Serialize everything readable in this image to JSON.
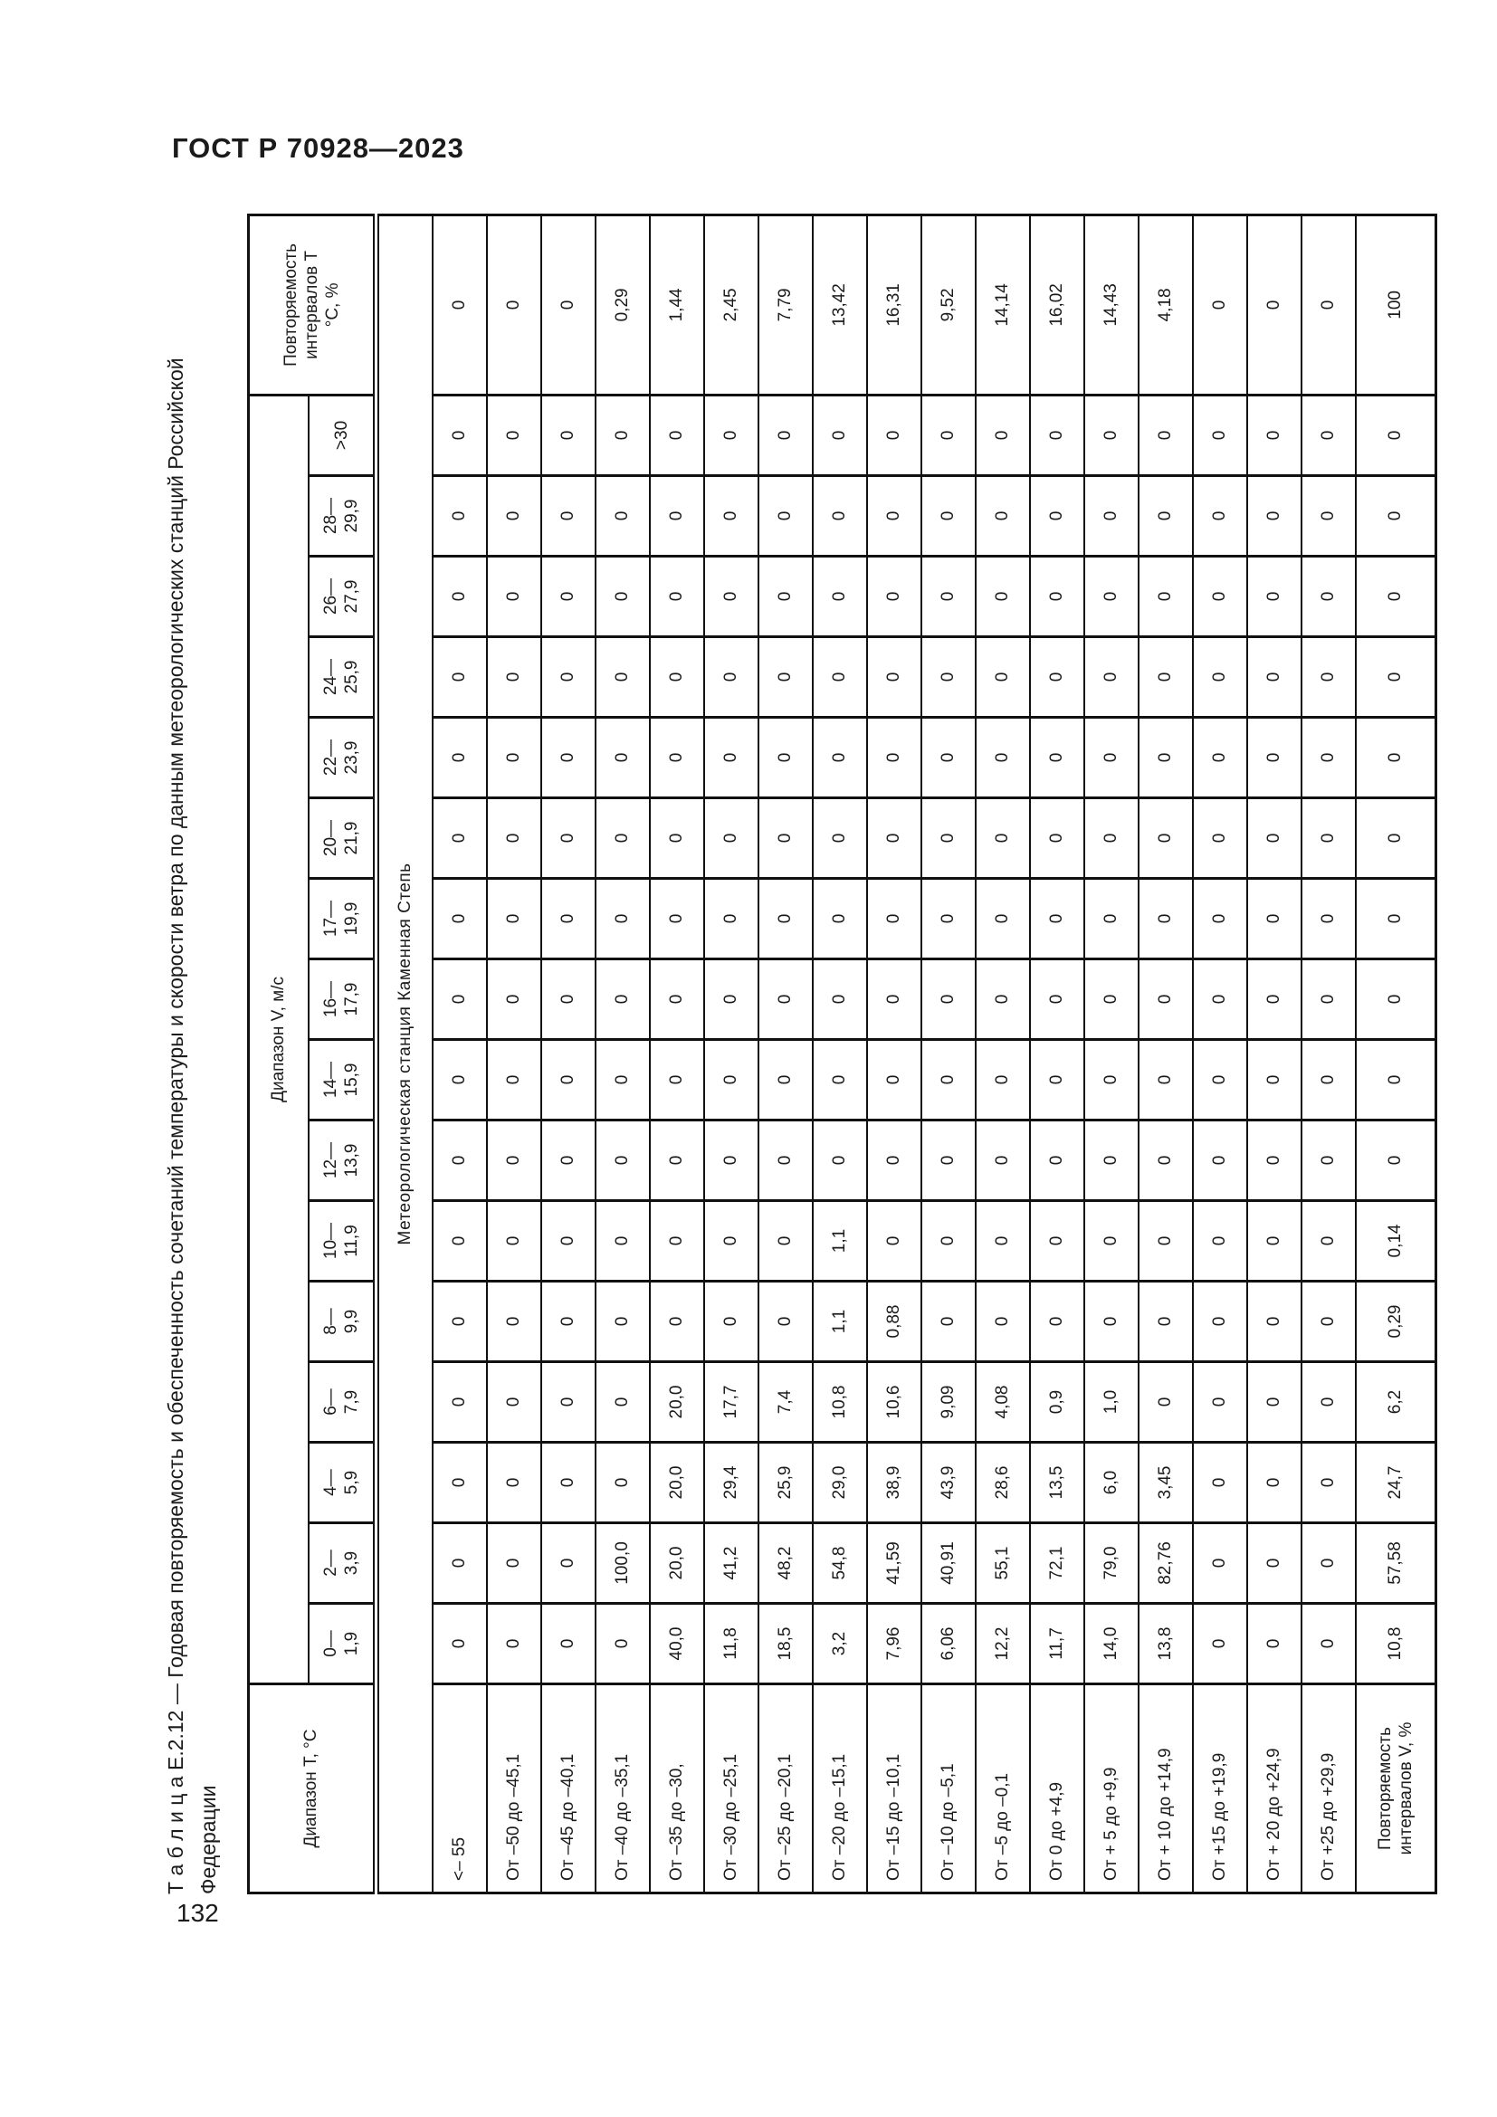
{
  "page": {
    "doc_header": "ГОСТ Р 70928—2023",
    "page_number": "132",
    "caption_line1": "Т а б л и ц а   Е.2.12 — Годовая повторяемость и обеспеченность сочетаний температуры и скорости ветра по данным метеорологических станций Российской",
    "caption_line2": "Федерации"
  },
  "table": {
    "header": {
      "temp_range": "Диапазон T, °С",
      "wind_range": "Диапазон V, м/с",
      "freq_temp": "Повторяемость\nинтервалов T\n°С, %"
    },
    "wind_ranges": [
      "0—\n1,9",
      "2—\n3,9",
      "4—\n5,9",
      "6—\n7,9",
      "8—\n9,9",
      "10—\n11,9",
      "12—\n13,9",
      "14—\n15,9",
      "16—\n17,9",
      "17—\n19,9",
      "20—\n21,9",
      "22—\n23,9",
      "24—\n25,9",
      "26—\n27,9",
      "28—\n29,9",
      ">30"
    ],
    "station": "Метеорологическая станция Каменная Степь",
    "rows": [
      {
        "label": "<– 55",
        "values": [
          "0",
          "0",
          "0",
          "0",
          "0",
          "0",
          "0",
          "0",
          "0",
          "0",
          "0",
          "0",
          "0",
          "0",
          "0",
          "0"
        ],
        "total": "0"
      },
      {
        "label": "От –50 до –45,1",
        "values": [
          "0",
          "0",
          "0",
          "0",
          "0",
          "0",
          "0",
          "0",
          "0",
          "0",
          "0",
          "0",
          "0",
          "0",
          "0",
          "0"
        ],
        "total": "0"
      },
      {
        "label": "От –45 до –40,1",
        "values": [
          "0",
          "0",
          "0",
          "0",
          "0",
          "0",
          "0",
          "0",
          "0",
          "0",
          "0",
          "0",
          "0",
          "0",
          "0",
          "0"
        ],
        "total": "0"
      },
      {
        "label": "От –40 до –35,1",
        "values": [
          "0",
          "100,0",
          "0",
          "0",
          "0",
          "0",
          "0",
          "0",
          "0",
          "0",
          "0",
          "0",
          "0",
          "0",
          "0",
          "0"
        ],
        "total": "0,29"
      },
      {
        "label": "От –35 до –30,",
        "values": [
          "40,0",
          "20,0",
          "20,0",
          "20,0",
          "0",
          "0",
          "0",
          "0",
          "0",
          "0",
          "0",
          "0",
          "0",
          "0",
          "0",
          "0"
        ],
        "total": "1,44"
      },
      {
        "label": "От –30 до –25,1",
        "values": [
          "11,8",
          "41,2",
          "29,4",
          "17,7",
          "0",
          "0",
          "0",
          "0",
          "0",
          "0",
          "0",
          "0",
          "0",
          "0",
          "0",
          "0"
        ],
        "total": "2,45"
      },
      {
        "label": "От –25 до –20,1",
        "values": [
          "18,5",
          "48,2",
          "25,9",
          "7,4",
          "0",
          "0",
          "0",
          "0",
          "0",
          "0",
          "0",
          "0",
          "0",
          "0",
          "0",
          "0"
        ],
        "total": "7,79"
      },
      {
        "label": "От –20 до –15,1",
        "values": [
          "3,2",
          "54,8",
          "29,0",
          "10,8",
          "1,1",
          "1,1",
          "0",
          "0",
          "0",
          "0",
          "0",
          "0",
          "0",
          "0",
          "0",
          "0"
        ],
        "total": "13,42"
      },
      {
        "label": "От –15 до –10,1",
        "values": [
          "7,96",
          "41,59",
          "38,9",
          "10,6",
          "0,88",
          "0",
          "0",
          "0",
          "0",
          "0",
          "0",
          "0",
          "0",
          "0",
          "0",
          "0"
        ],
        "total": "16,31"
      },
      {
        "label": "От –10 до –5,1",
        "values": [
          "6,06",
          "40,91",
          "43,9",
          "9,09",
          "0",
          "0",
          "0",
          "0",
          "0",
          "0",
          "0",
          "0",
          "0",
          "0",
          "0",
          "0"
        ],
        "total": "9,52"
      },
      {
        "label": "От –5 до –0,1",
        "values": [
          "12,2",
          "55,1",
          "28,6",
          "4,08",
          "0",
          "0",
          "0",
          "0",
          "0",
          "0",
          "0",
          "0",
          "0",
          "0",
          "0",
          "0"
        ],
        "total": "14,14"
      },
      {
        "label": "От 0 до +4,9",
        "values": [
          "11,7",
          "72,1",
          "13,5",
          "0,9",
          "0",
          "0",
          "0",
          "0",
          "0",
          "0",
          "0",
          "0",
          "0",
          "0",
          "0",
          "0"
        ],
        "total": "16,02"
      },
      {
        "label": "От + 5 до +9,9",
        "values": [
          "14,0",
          "79,0",
          "6,0",
          "1,0",
          "0",
          "0",
          "0",
          "0",
          "0",
          "0",
          "0",
          "0",
          "0",
          "0",
          "0",
          "0"
        ],
        "total": "14,43"
      },
      {
        "label": "От + 10 до +14,9",
        "values": [
          "13,8",
          "82,76",
          "3,45",
          "0",
          "0",
          "0",
          "0",
          "0",
          "0",
          "0",
          "0",
          "0",
          "0",
          "0",
          "0",
          "0"
        ],
        "total": "4,18"
      },
      {
        "label": "От +15 до +19,9",
        "values": [
          "0",
          "0",
          "0",
          "0",
          "0",
          "0",
          "0",
          "0",
          "0",
          "0",
          "0",
          "0",
          "0",
          "0",
          "0",
          "0"
        ],
        "total": "0"
      },
      {
        "label": "От + 20 до +24,9",
        "values": [
          "0",
          "0",
          "0",
          "0",
          "0",
          "0",
          "0",
          "0",
          "0",
          "0",
          "0",
          "0",
          "0",
          "0",
          "0",
          "0"
        ],
        "total": "0"
      },
      {
        "label": "От +25 до +29,9",
        "values": [
          "0",
          "0",
          "0",
          "0",
          "0",
          "0",
          "0",
          "0",
          "0",
          "0",
          "0",
          "0",
          "0",
          "0",
          "0",
          "0"
        ],
        "total": "0"
      }
    ],
    "totals": {
      "label": "Повторяемость\nинтервалов V, %",
      "values": [
        "10,8",
        "57,58",
        "24,7",
        "6,2",
        "0,29",
        "0,14",
        "0",
        "0",
        "0",
        "0",
        "0",
        "0",
        "0",
        "0",
        "0",
        "0"
      ],
      "total": "100"
    }
  }
}
